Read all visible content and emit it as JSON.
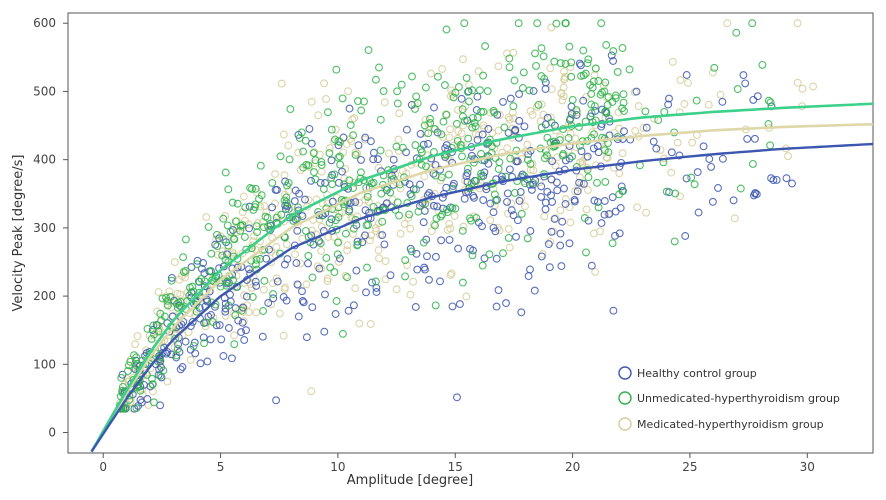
{
  "chart_data": {
    "type": "scatter",
    "title": "",
    "xlabel": "Amplitude [degree]",
    "ylabel": "Velocity Peak [degree/s]",
    "xlim": [
      -1.5,
      32.8
    ],
    "ylim": [
      -30,
      615
    ],
    "xticks": [
      0,
      5,
      10,
      15,
      20,
      25,
      30
    ],
    "yticks": [
      0,
      100,
      200,
      300,
      400,
      500,
      600
    ],
    "grid": false,
    "legend_position": "bottom-right",
    "series": [
      {
        "name": "Healthy control group",
        "color": "#3d57b0",
        "marker": "open-circle",
        "fit": {
          "x": [
            -0.5,
            1,
            2,
            3,
            5,
            8,
            11,
            14,
            17,
            20,
            23,
            26,
            29,
            32.8
          ],
          "y": [
            -28,
            50,
            97,
            137,
            200,
            270,
            314,
            345,
            368,
            385,
            398,
            408,
            416,
            423
          ]
        },
        "points_summary": {
          "x_range": [
            0.7,
            30.5
          ],
          "y_range": [
            40,
            600
          ],
          "trend": "saturating growth"
        }
      },
      {
        "name": "Unmedicated-hyperthyroidism group",
        "color": "#2fb34a",
        "marker": "open-circle",
        "fit": {
          "x": [
            -0.5,
            1,
            2,
            3,
            5,
            8,
            11,
            14,
            17,
            20,
            23,
            26,
            29,
            32.8
          ],
          "y": [
            -28,
            62,
            118,
            165,
            238,
            318,
            370,
            405,
            430,
            449,
            462,
            470,
            476,
            482
          ]
        },
        "points_summary": {
          "x_range": [
            0.7,
            28.8
          ],
          "y_range": [
            40,
            600
          ],
          "trend": "saturating growth"
        }
      },
      {
        "name": "Medicated-hyperthyroidism group",
        "color": "#d6cd9a",
        "marker": "open-circle",
        "fit": {
          "x": [
            -0.5,
            1,
            2,
            3,
            5,
            8,
            11,
            14,
            17,
            20,
            23,
            26,
            29,
            32.8
          ],
          "y": [
            -28,
            58,
            111,
            155,
            224,
            300,
            352,
            385,
            408,
            424,
            435,
            443,
            448,
            452
          ]
        },
        "points_summary": {
          "x_range": [
            0.7,
            30.8
          ],
          "y_range": [
            40,
            590
          ],
          "trend": "saturating growth"
        }
      }
    ]
  }
}
